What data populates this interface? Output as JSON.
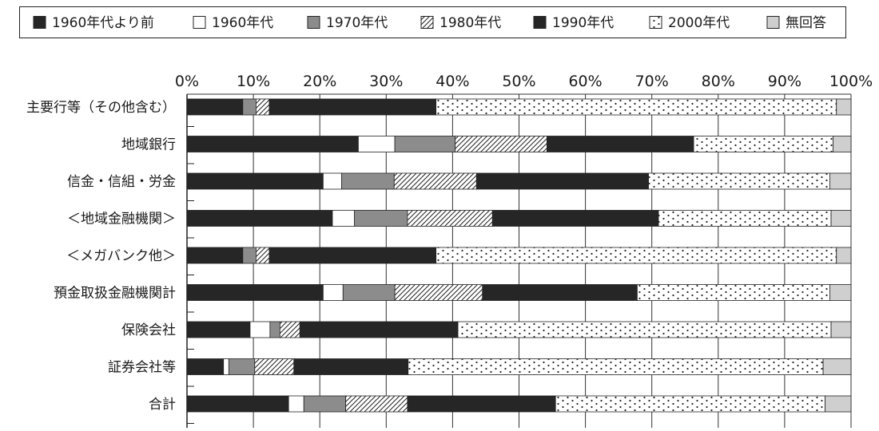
{
  "chart_data": {
    "type": "bar",
    "orientation": "horizontal",
    "stacked": true,
    "percent_stacked": true,
    "title": "",
    "xlabel": "",
    "ylabel": "",
    "xlim": [
      0,
      100
    ],
    "x_ticks": [
      "0%",
      "10%",
      "20%",
      "30%",
      "40%",
      "50%",
      "60%",
      "70%",
      "80%",
      "90%",
      "100%"
    ],
    "grid": true,
    "legend_position": "top",
    "categories": [
      "主要行等（その他含む）",
      "地域銀行",
      "信金・信組・労金",
      "＜地域金融機関＞",
      "＜メガバンク他＞",
      "預金取扱金融機関計",
      "保険会社",
      "証券会社等",
      "合計"
    ],
    "series": [
      {
        "name": "1960年代より前",
        "fill": "#262626",
        "pattern": "solid",
        "values": [
          8.4,
          25.8,
          20.5,
          21.9,
          8.4,
          20.5,
          9.5,
          5.5,
          15.3
        ]
      },
      {
        "name": "1960年代",
        "fill": "#ffffff",
        "pattern": "solid",
        "values": [
          0,
          5.5,
          2.8,
          3.3,
          0,
          3.0,
          3.0,
          0.8,
          2.3
        ]
      },
      {
        "name": "1970年代",
        "fill": "#8c8c8c",
        "pattern": "solid",
        "values": [
          2.0,
          9.1,
          7.9,
          8.0,
          2.0,
          7.8,
          1.5,
          3.9,
          6.3
        ]
      },
      {
        "name": "1980年代",
        "fill": "#ffffff",
        "pattern": "diagonal-hatch",
        "values": [
          2.0,
          13.8,
          12.4,
          12.8,
          2.0,
          13.2,
          3.0,
          5.9,
          9.3
        ]
      },
      {
        "name": "1990年代",
        "fill": "#262626",
        "pattern": "solid",
        "values": [
          25.1,
          22.1,
          25.9,
          25.0,
          25.1,
          23.3,
          23.8,
          17.2,
          22.3
        ]
      },
      {
        "name": "2000年代",
        "fill": "#ffffff",
        "pattern": "dots",
        "values": [
          60.3,
          21.0,
          27.3,
          26.0,
          60.3,
          29.0,
          56.2,
          62.5,
          40.6
        ]
      },
      {
        "name": "無回答",
        "fill": "#cfcfcf",
        "pattern": "solid",
        "values": [
          2.2,
          2.7,
          3.2,
          3.0,
          2.2,
          3.2,
          3.0,
          4.2,
          3.9
        ]
      }
    ]
  }
}
